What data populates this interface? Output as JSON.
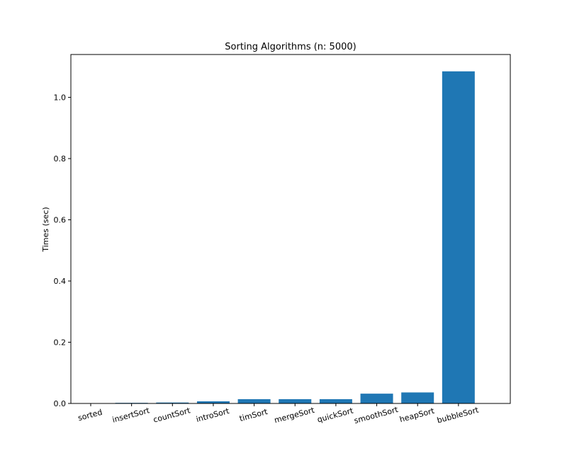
{
  "chart_data": {
    "type": "bar",
    "title": "Sorting Algorithms (n: 5000)",
    "xlabel": "",
    "ylabel": "Times (sec)",
    "categories": [
      "sorted",
      "insertSort",
      "countSort",
      "introSort",
      "timSort",
      "mergeSort",
      "quickSort",
      "smoothSort",
      "heapSort",
      "bubbleSort"
    ],
    "values": [
      0.0002,
      0.002,
      0.003,
      0.007,
      0.014,
      0.014,
      0.014,
      0.032,
      0.036,
      1.085
    ],
    "ylim": [
      0,
      1.14
    ],
    "yticks": [
      0.0,
      0.2,
      0.4,
      0.6,
      0.8,
      1.0
    ],
    "ytick_labels": [
      "0.0",
      "0.2",
      "0.4",
      "0.6",
      "0.8",
      "1.0"
    ],
    "bar_color": "#1f77b4",
    "grid": false
  }
}
